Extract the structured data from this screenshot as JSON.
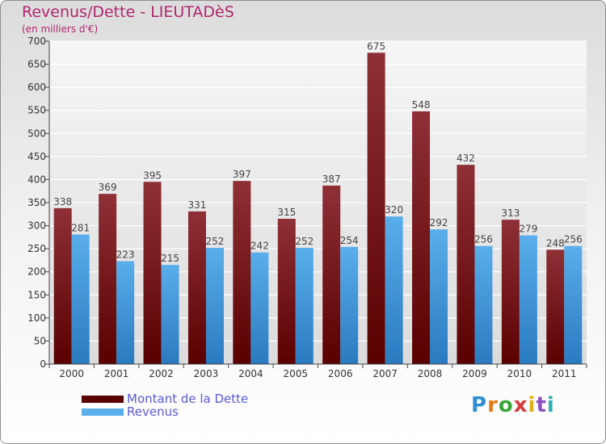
{
  "title": "Revenus/Dette - LIEUTADèS",
  "subtitle": "(en milliers d'€)",
  "logo": "Proxiti",
  "colors": {
    "debt_top": "#8e3036",
    "debt_bottom": "#5a0000",
    "rev_top": "#5aaeea",
    "rev_bottom": "#2a7ac0",
    "title": "#b0266e",
    "legend_text": "#5a5ad6"
  },
  "chart_data": {
    "type": "bar",
    "categories": [
      "2000",
      "2001",
      "2002",
      "2003",
      "2004",
      "2005",
      "2006",
      "2007",
      "2008",
      "2009",
      "2010",
      "2011"
    ],
    "series": [
      {
        "name": "Montant de la Dette",
        "values": [
          338,
          369,
          395,
          331,
          397,
          315,
          387,
          675,
          548,
          432,
          313,
          248
        ]
      },
      {
        "name": "Revenus",
        "values": [
          281,
          223,
          215,
          252,
          242,
          252,
          254,
          320,
          292,
          256,
          279,
          256
        ]
      }
    ],
    "ylim": [
      0,
      700
    ],
    "yticks": [
      0,
      50,
      100,
      150,
      200,
      250,
      300,
      350,
      400,
      450,
      500,
      550,
      600,
      650,
      700
    ],
    "grid": true,
    "legend": "bottom-left"
  }
}
